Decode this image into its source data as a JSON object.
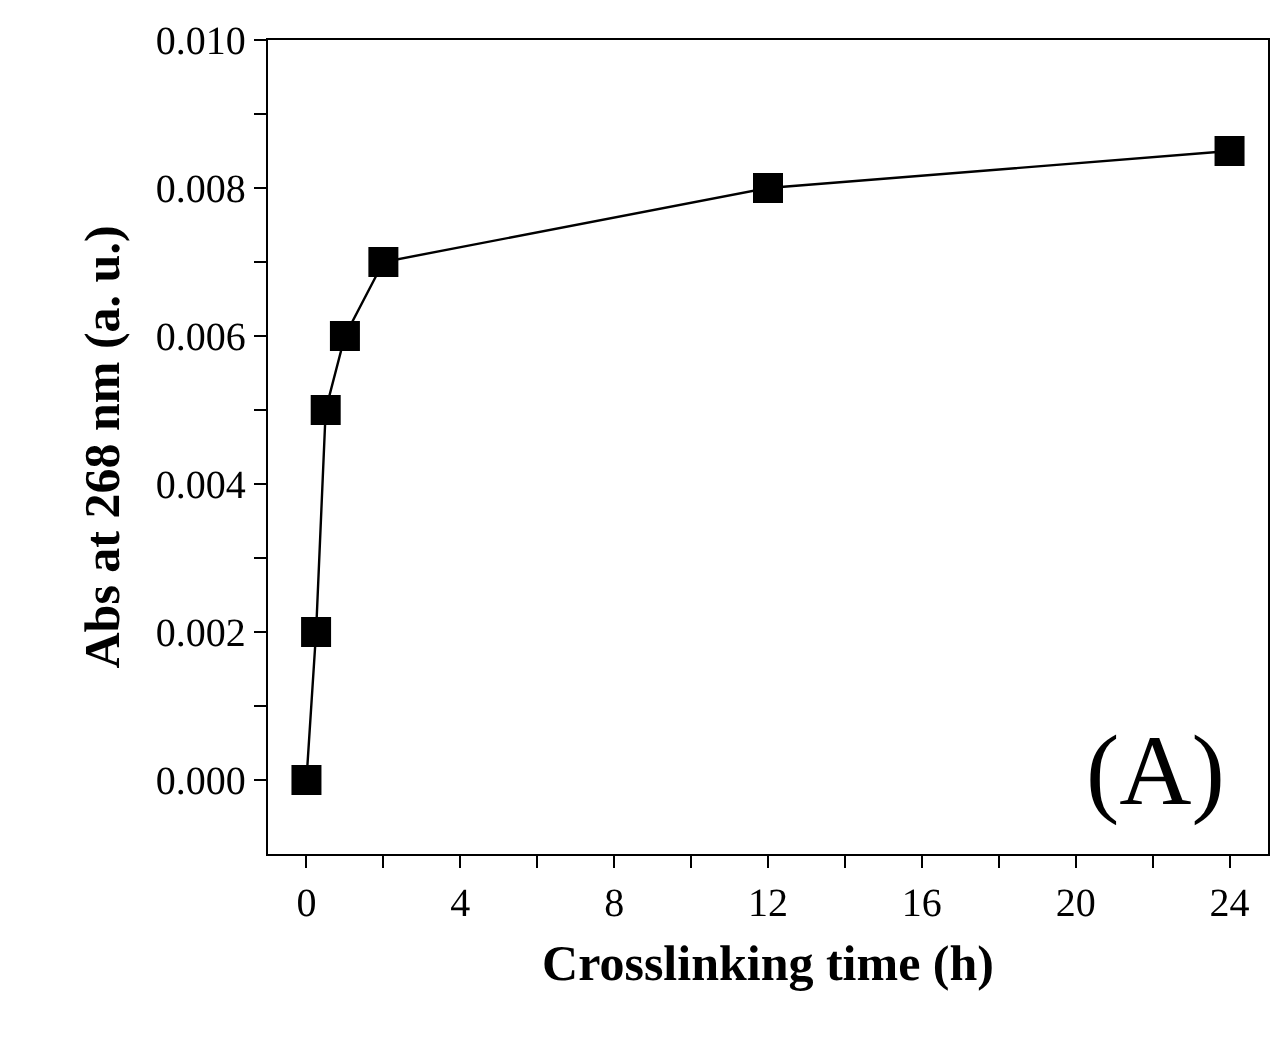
{
  "chart_data": {
    "type": "line",
    "xlabel": "Crosslinking time (h)",
    "ylabel": "Abs at 268 nm (a. u.)",
    "x": [
      0,
      0.25,
      0.5,
      1,
      2,
      12,
      24
    ],
    "series": [
      {
        "color": "#000000",
        "values": [
          0,
          0.002,
          0.005,
          0.006,
          0.007,
          0.008,
          0.0085
        ]
      }
    ],
    "marker": "square",
    "line_style": "solid",
    "xlim": [
      -1,
      25
    ],
    "xticks": [
      0,
      {
        "value": 2,
        "label": null
      },
      4,
      {
        "value": 6,
        "label": null
      },
      8,
      {
        "value": 10,
        "label": null
      },
      12,
      {
        "value": 14,
        "label": null
      },
      16,
      {
        "value": 18,
        "label": null
      },
      20,
      {
        "value": 22,
        "label": null
      },
      24
    ],
    "ylim": [
      -0.001,
      0.01
    ],
    "yticks": [
      {
        "value": 0,
        "label": "0.000"
      },
      {
        "value": 0.001,
        "label": null
      },
      {
        "value": 0.002,
        "label": "0.002"
      },
      {
        "value": 0.003,
        "label": null
      },
      {
        "value": 0.004,
        "label": "0.004"
      },
      {
        "value": 0.005,
        "label": null
      },
      {
        "value": 0.006,
        "label": "0.006"
      },
      {
        "value": 0.007,
        "label": null
      },
      {
        "value": 0.008,
        "label": "0.008"
      },
      {
        "value": 0.009,
        "label": null
      },
      {
        "value": 0.01,
        "label": "0.010"
      }
    ],
    "annotations": [
      "(A)"
    ]
  }
}
